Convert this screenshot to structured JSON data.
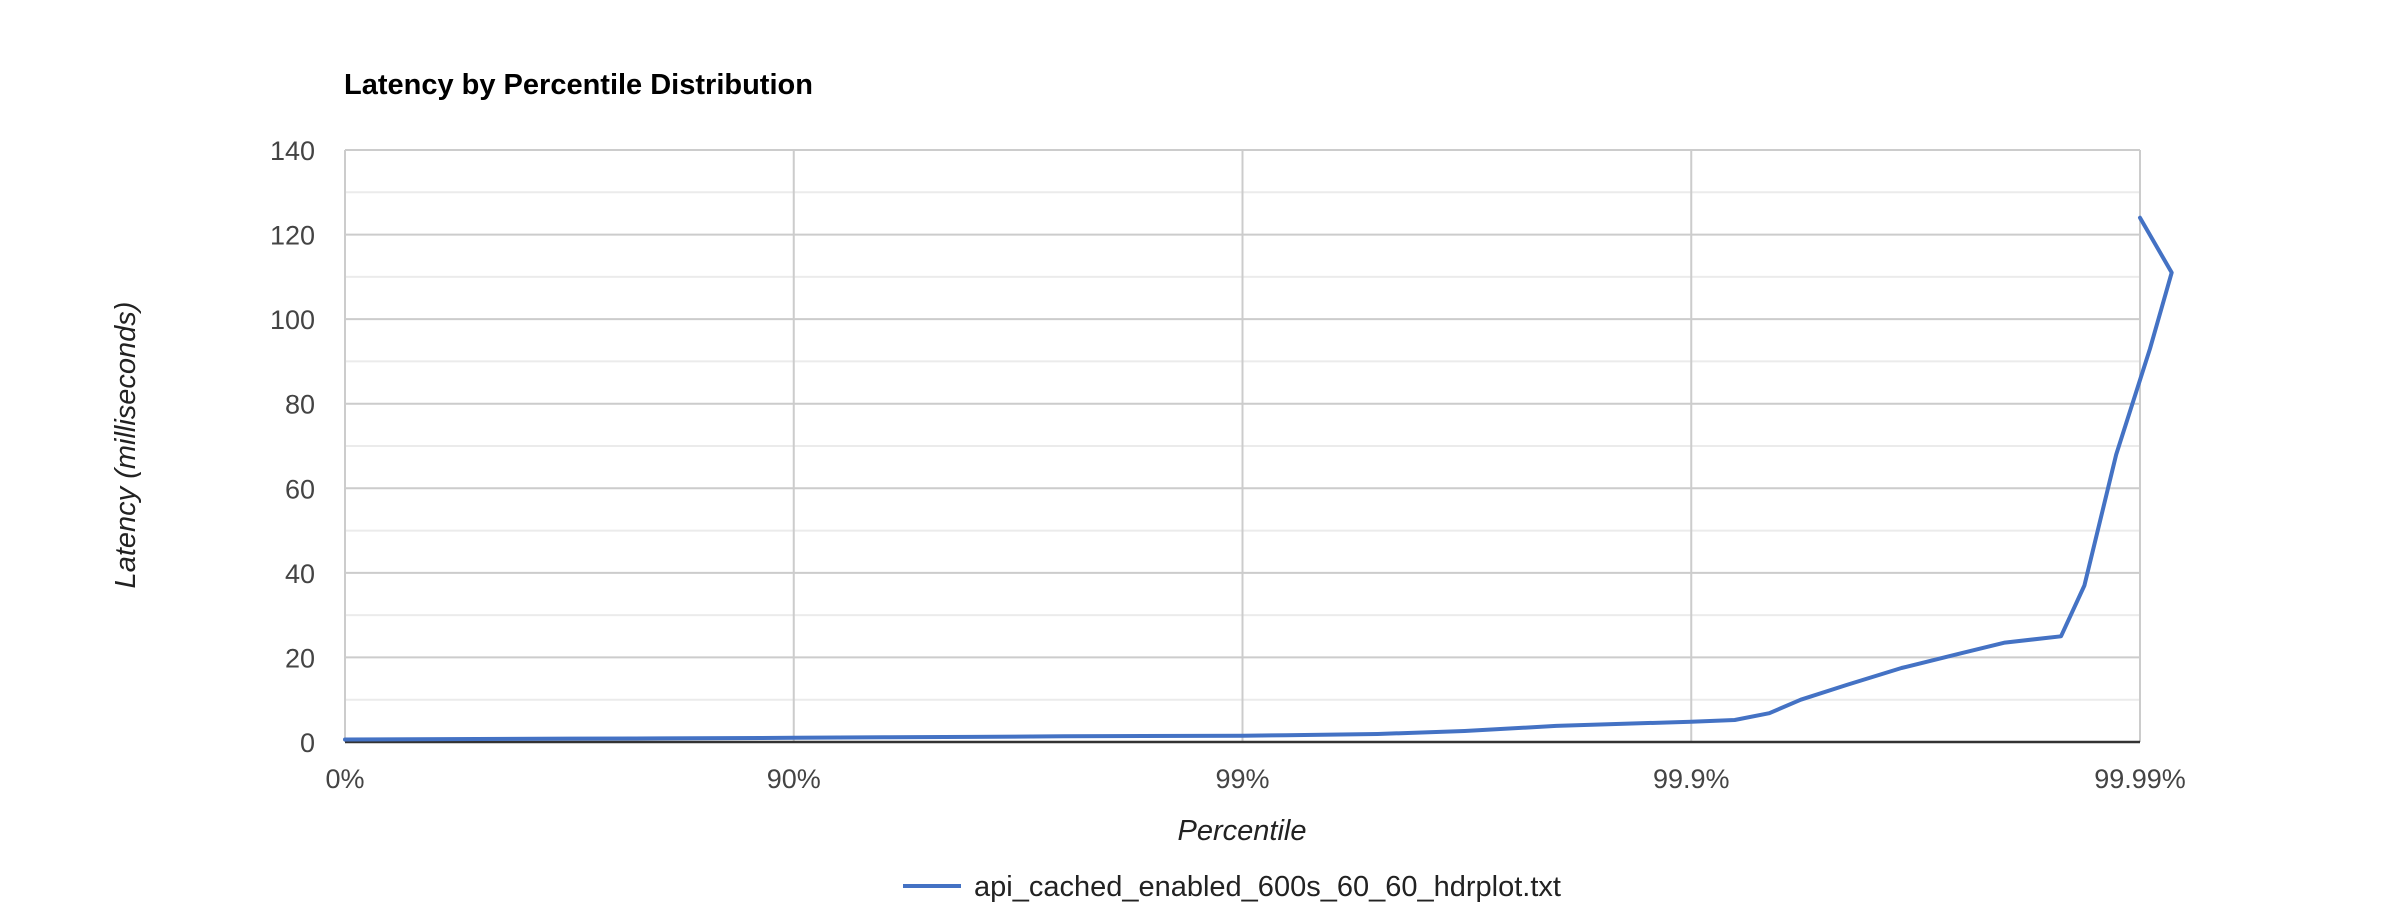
{
  "chart_data": {
    "type": "line",
    "title": "Latency by Percentile Distribution",
    "xlabel": "Percentile",
    "ylabel": "Latency (milliseconds)",
    "x_scale": "log-inverse-percentile",
    "x_ticks": [
      "0%",
      "90%",
      "99%",
      "99.9%",
      "99.99%"
    ],
    "y_ticks": [
      0,
      20,
      40,
      60,
      80,
      100,
      120,
      140
    ],
    "ylim": [
      0,
      140
    ],
    "grid": true,
    "legend_position": "bottom",
    "colors": {
      "series": "#4472c4",
      "grid_major": "#cccccc",
      "grid_minor": "#ebebeb",
      "baseline": "#333333"
    },
    "series": [
      {
        "name": "api_cached_enabled_600s_60_60_hdrplot.txt",
        "points": [
          {
            "x": "0%",
            "y": 0.6
          },
          {
            "x": "68.4%",
            "y": 0.8
          },
          {
            "x": "80.0%",
            "y": 0.85
          },
          {
            "x": "88.2%",
            "y": 0.95
          },
          {
            "x": "90%",
            "y": 1.0
          },
          {
            "x": "93.7%",
            "y": 1.1
          },
          {
            "x": "96.0%",
            "y": 1.2
          },
          {
            "x": "97.5%",
            "y": 1.35
          },
          {
            "x": "99%",
            "y": 1.5
          },
          {
            "x": "99.2%",
            "y": 1.6
          },
          {
            "x": "99.5%",
            "y": 1.9
          },
          {
            "x": "99.68%",
            "y": 2.6
          },
          {
            "x": "99.8%",
            "y": 3.8
          },
          {
            "x": "99.9%",
            "y": 4.8
          },
          {
            "x": "99.92%",
            "y": 5.2
          },
          {
            "x": "99.933%",
            "y": 6.8
          },
          {
            "x": "99.943%",
            "y": 10.0
          },
          {
            "x": "99.955%",
            "y": 13.5
          },
          {
            "x": "99.966%",
            "y": 17.5
          },
          {
            "x": "99.975%",
            "y": 21.0
          },
          {
            "x": "99.98%",
            "y": 23.5
          },
          {
            "x": "99.985%",
            "y": 25.0
          },
          {
            "x": "99.9867%",
            "y": 37.0
          },
          {
            "x": "99.9887%",
            "y": 68.0
          },
          {
            "x": "99.9905%",
            "y": 93.0
          },
          {
            "x": "99.9915%",
            "y": 111.0
          },
          {
            "x": "99.99%",
            "y": 124.0
          }
        ]
      }
    ]
  }
}
